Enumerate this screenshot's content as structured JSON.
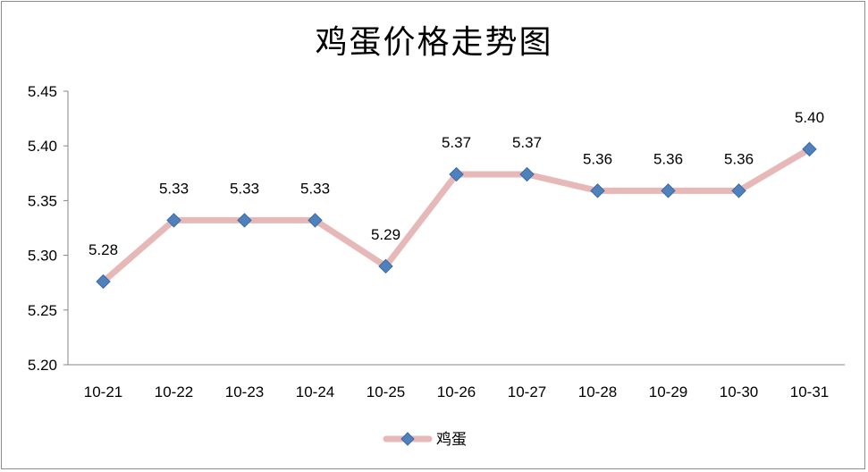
{
  "chart_data": {
    "type": "line",
    "title": "鸡蛋价格走势图",
    "xlabel": "",
    "ylabel": "",
    "categories": [
      "10-21",
      "10-22",
      "10-23",
      "10-24",
      "10-25",
      "10-26",
      "10-27",
      "10-28",
      "10-29",
      "10-30",
      "10-31"
    ],
    "series": [
      {
        "name": "鸡蛋",
        "values": [
          5.276,
          5.332,
          5.332,
          5.332,
          5.29,
          5.374,
          5.374,
          5.359,
          5.359,
          5.359,
          5.397
        ],
        "labels": [
          "5.28",
          "5.33",
          "5.33",
          "5.33",
          "5.29",
          "5.37",
          "5.37",
          "5.36",
          "5.36",
          "5.36",
          "5.40"
        ]
      }
    ],
    "ylim": [
      5.2,
      5.45
    ],
    "yticks": [
      "5.20",
      "5.25",
      "5.30",
      "5.35",
      "5.40",
      "5.45"
    ],
    "grid": false,
    "legend": "bottom"
  },
  "colors": {
    "line": "#e6b9b8",
    "marker": "#4f81bd",
    "axis": "#868686"
  }
}
